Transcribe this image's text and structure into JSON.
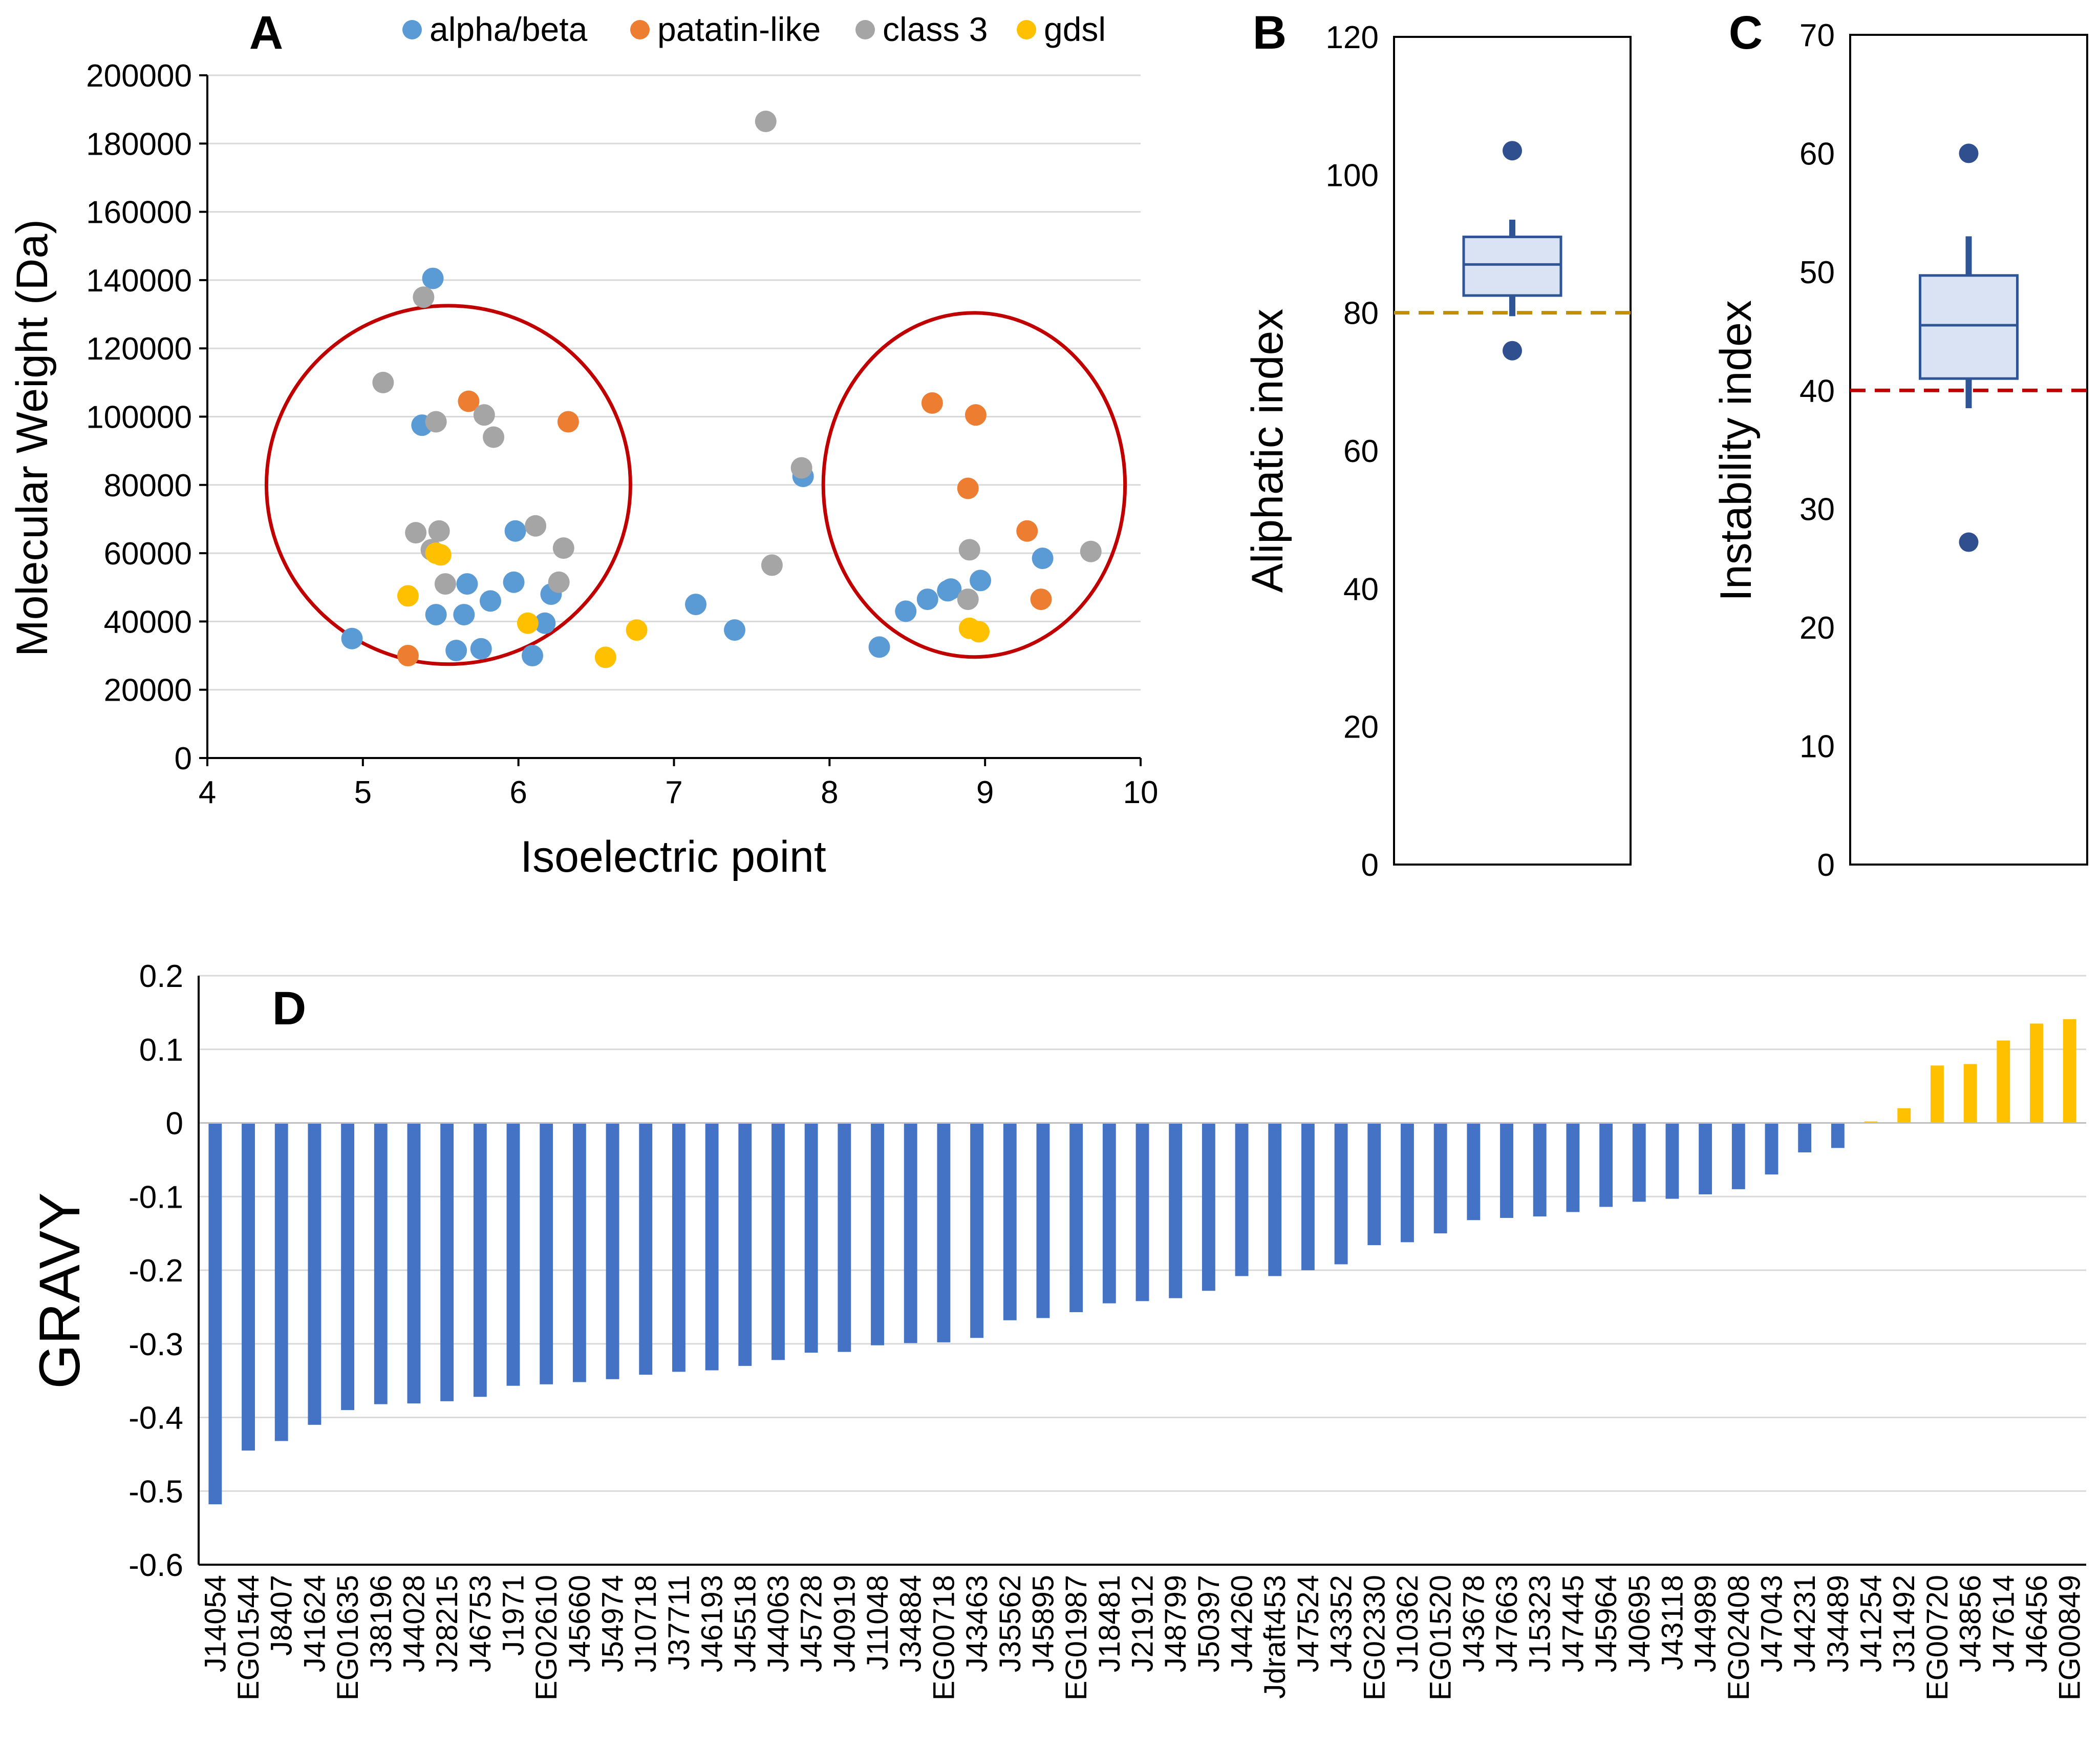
{
  "colors": {
    "alpha_beta": "#5b9bd5",
    "patatin_like": "#ed7d31",
    "class3": "#a5a5a5",
    "gdsl": "#ffc000",
    "bar_negative": "#4472c4",
    "bar_positive": "#ffc000",
    "ellipse": "#c00000",
    "box_fill": "#dae3f3",
    "box_stroke": "#2f5597",
    "outlier": "#2f4f8f",
    "aliphatic_threshold": "#bf9000",
    "instability_threshold": "#c00000",
    "grid": "#d9d9d9",
    "axis": "#000000"
  },
  "chart_data": [
    {
      "panel": "A",
      "type": "scatter",
      "title": "",
      "xlabel": "Isoelectric point",
      "ylabel": "Molecular Weight (Da)",
      "xlim": [
        4,
        10
      ],
      "ylim": [
        0,
        200000
      ],
      "xticks": [
        "4",
        "5",
        "6",
        "7",
        "8",
        "9",
        "10"
      ],
      "yticks": [
        "0",
        "20000",
        "40000",
        "60000",
        "80000",
        "100000",
        "120000",
        "140000",
        "160000",
        "180000",
        "200000"
      ],
      "legend_position": "top",
      "series": [
        {
          "name": "alpha/beta",
          "color_key": "alpha_beta",
          "points": [
            [
              4.93,
              35000
            ],
            [
              5.38,
              97500
            ],
            [
              5.45,
              140500
            ],
            [
              5.47,
              42000
            ],
            [
              5.6,
              31500
            ],
            [
              5.65,
              42000
            ],
            [
              5.67,
              51000
            ],
            [
              5.76,
              32000
            ],
            [
              5.82,
              46000
            ],
            [
              5.97,
              51500
            ],
            [
              5.98,
              66500
            ],
            [
              6.09,
              30000
            ],
            [
              6.17,
              39500
            ],
            [
              6.21,
              48000
            ],
            [
              7.14,
              45000
            ],
            [
              7.39,
              37500
            ],
            [
              7.83,
              82500
            ],
            [
              8.32,
              32500
            ],
            [
              8.49,
              43000
            ],
            [
              8.63,
              46500
            ],
            [
              8.76,
              49000
            ],
            [
              8.78,
              49500
            ],
            [
              8.97,
              52000
            ],
            [
              9.37,
              58500
            ]
          ]
        },
        {
          "name": "patatin-like",
          "color_key": "patatin_like",
          "points": [
            [
              5.29,
              30000
            ],
            [
              5.68,
              104500
            ],
            [
              6.32,
              98500
            ],
            [
              8.66,
              104000
            ],
            [
              8.89,
              79000
            ],
            [
              8.94,
              100500
            ],
            [
              9.27,
              66500
            ],
            [
              9.36,
              46500
            ]
          ]
        },
        {
          "name": "class 3",
          "color_key": "class3",
          "points": [
            [
              5.13,
              110000
            ],
            [
              5.34,
              66000
            ],
            [
              5.39,
              135000
            ],
            [
              5.44,
              61000
            ],
            [
              5.47,
              98500
            ],
            [
              5.49,
              66500
            ],
            [
              5.53,
              51000
            ],
            [
              5.78,
              100500
            ],
            [
              5.84,
              94000
            ],
            [
              6.11,
              68000
            ],
            [
              6.26,
              51500
            ],
            [
              6.29,
              61500
            ],
            [
              7.59,
              186500
            ],
            [
              7.63,
              56500
            ],
            [
              7.82,
              85000
            ],
            [
              8.89,
              46500
            ],
            [
              8.9,
              61000
            ],
            [
              9.68,
              60500
            ]
          ]
        },
        {
          "name": "gdsl",
          "color_key": "gdsl",
          "points": [
            [
              5.29,
              47500
            ],
            [
              5.47,
              60000
            ],
            [
              5.5,
              59500
            ],
            [
              6.06,
              39500
            ],
            [
              6.56,
              29500
            ],
            [
              6.76,
              37500
            ],
            [
              8.9,
              38000
            ],
            [
              8.96,
              37000
            ]
          ]
        }
      ],
      "annotations": [
        "ellipse around acidic cluster (pI 4.5-6.7)",
        "ellipse around basic cluster (pI 7.9-9.9)"
      ]
    },
    {
      "panel": "B",
      "type": "box",
      "ylabel": "Aliphatic index",
      "ylim": [
        0,
        120
      ],
      "yticks": [
        "0",
        "20",
        "40",
        "60",
        "80",
        "100",
        "120"
      ],
      "q1": 82.5,
      "median": 87,
      "q3": 91,
      "whisker_low": 79.5,
      "whisker_high": 93.5,
      "outliers": [
        103.5,
        74.5
      ],
      "threshold": 80,
      "threshold_color_key": "aliphatic_threshold"
    },
    {
      "panel": "C",
      "type": "box",
      "ylabel": "Instability index",
      "ylim": [
        0,
        70
      ],
      "yticks": [
        "0",
        "10",
        "20",
        "30",
        "40",
        "50",
        "60",
        "70"
      ],
      "q1": 41,
      "median": 45.5,
      "q3": 49.7,
      "whisker_low": 38.5,
      "whisker_high": 53,
      "outliers": [
        60,
        27.2
      ],
      "threshold": 40,
      "threshold_color_key": "instability_threshold"
    },
    {
      "panel": "D",
      "type": "bar",
      "ylabel": "GRAVY",
      "ylim": [
        -0.6,
        0.2
      ],
      "yticks": [
        "0.2",
        "0.1",
        "0",
        "-0.1",
        "-0.2",
        "-0.3",
        "-0.4",
        "-0.5",
        "-0.6"
      ],
      "categories": [
        "J14054",
        "EG01544",
        "J8407",
        "J41624",
        "EG01635",
        "J38196",
        "J44028",
        "J28215",
        "J46753",
        "J1971",
        "EG02610",
        "J45660",
        "J54974",
        "J10718",
        "J37711",
        "J46193",
        "J45518",
        "J44063",
        "J45728",
        "J40919",
        "J11048",
        "J34884",
        "EG00718",
        "J43463",
        "J35562",
        "J45895",
        "EG01987",
        "J18481",
        "J21912",
        "J48799",
        "J50397",
        "J44260",
        "Jdraft453",
        "J47524",
        "J43352",
        "EG02330",
        "J10362",
        "EG01520",
        "J43678",
        "J47663",
        "J15323",
        "J47445",
        "J45964",
        "J40695",
        "J43118",
        "J44989",
        "EG02408",
        "J47043",
        "J44231",
        "J34489",
        "J41254",
        "J31492",
        "EG00720",
        "J43856",
        "J47614",
        "J46456",
        "EG00849"
      ],
      "values": [
        -0.518,
        -0.445,
        -0.432,
        -0.41,
        -0.39,
        -0.382,
        -0.381,
        -0.378,
        -0.372,
        -0.357,
        -0.355,
        -0.352,
        -0.348,
        -0.342,
        -0.338,
        -0.336,
        -0.33,
        -0.322,
        -0.312,
        -0.311,
        -0.302,
        -0.299,
        -0.298,
        -0.292,
        -0.268,
        -0.265,
        -0.257,
        -0.245,
        -0.242,
        -0.238,
        -0.228,
        -0.208,
        -0.208,
        -0.2,
        -0.192,
        -0.166,
        -0.162,
        -0.15,
        -0.132,
        -0.129,
        -0.127,
        -0.121,
        -0.114,
        -0.107,
        -0.103,
        -0.097,
        -0.09,
        -0.07,
        -0.04,
        -0.034,
        0.002,
        0.02,
        0.078,
        0.08,
        0.112,
        0.135,
        0.141
      ]
    }
  ],
  "labels": {
    "panel_a": "A",
    "panel_b": "B",
    "panel_c": "C",
    "panel_d": "D"
  }
}
